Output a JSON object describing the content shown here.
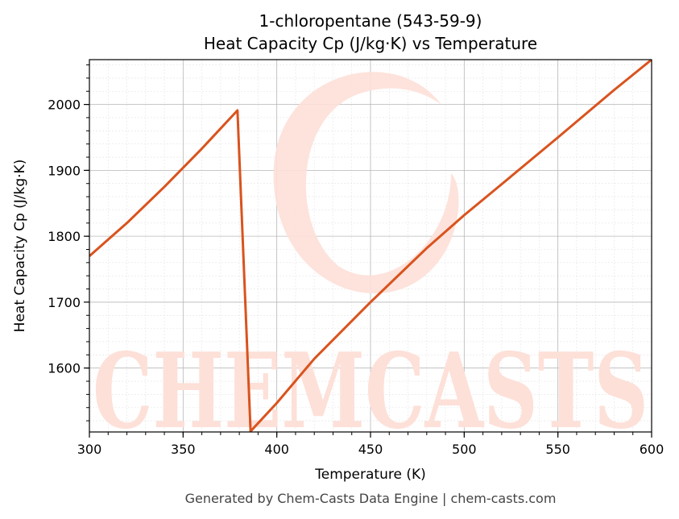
{
  "chart_data": {
    "type": "line",
    "title": "1-chloropentane (543-59-9)",
    "subtitle": "Heat Capacity Cp (J/kg·K) vs Temperature",
    "xlabel": "Temperature (K)",
    "ylabel": "Heat Capacity Cp (J/kg·K)",
    "xlim": [
      300,
      600
    ],
    "ylim": [
      1503,
      2068
    ],
    "x_ticks": [
      300,
      350,
      400,
      450,
      500,
      550,
      600
    ],
    "y_ticks": [
      1600,
      1700,
      1800,
      1900,
      2000
    ],
    "grid": true,
    "legend": "none",
    "series": [
      {
        "color": "#d9531e",
        "x": [
          300,
          320,
          340,
          360,
          379,
          386,
          400,
          420,
          450,
          480,
          500,
          520,
          550,
          580,
          600
        ],
        "y": [
          1770,
          1820,
          1875,
          1933,
          1991,
          1504,
          1547,
          1614,
          1700,
          1782,
          1832,
          1879,
          1950,
          2022,
          2068
        ]
      }
    ]
  },
  "watermark": {
    "text": "CHEMCASTS",
    "color": "#fde0d8"
  },
  "footer": "Generated by Chem-Casts Data Engine | chem-casts.com"
}
